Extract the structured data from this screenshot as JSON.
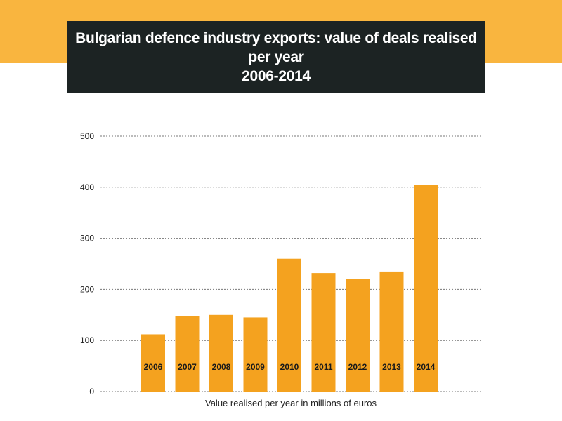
{
  "header": {
    "title_line1": "Bulgarian defence industry exports: value of deals realised per year",
    "title_line2": "2006-2014"
  },
  "colors": {
    "band": "#f9b53f",
    "title_box": "#1c2323",
    "bar": "#f4a21f",
    "grid": "#777777"
  },
  "chart_data": {
    "type": "bar",
    "title": "Bulgarian defence industry exports: value of deals realised per year 2006-2014",
    "categories": [
      "2006",
      "2007",
      "2008",
      "2009",
      "2010",
      "2011",
      "2012",
      "2013",
      "2014"
    ],
    "values": [
      112,
      148,
      150,
      145,
      260,
      232,
      220,
      235,
      404
    ],
    "xlabel": "Value realised per year in millions of euros",
    "ylabel": "",
    "ylim": [
      0,
      500
    ],
    "yticks": [
      0,
      100,
      200,
      300,
      400,
      500
    ],
    "grid": true,
    "legend": "none",
    "category_label_position": "inside-bar-bottom"
  }
}
